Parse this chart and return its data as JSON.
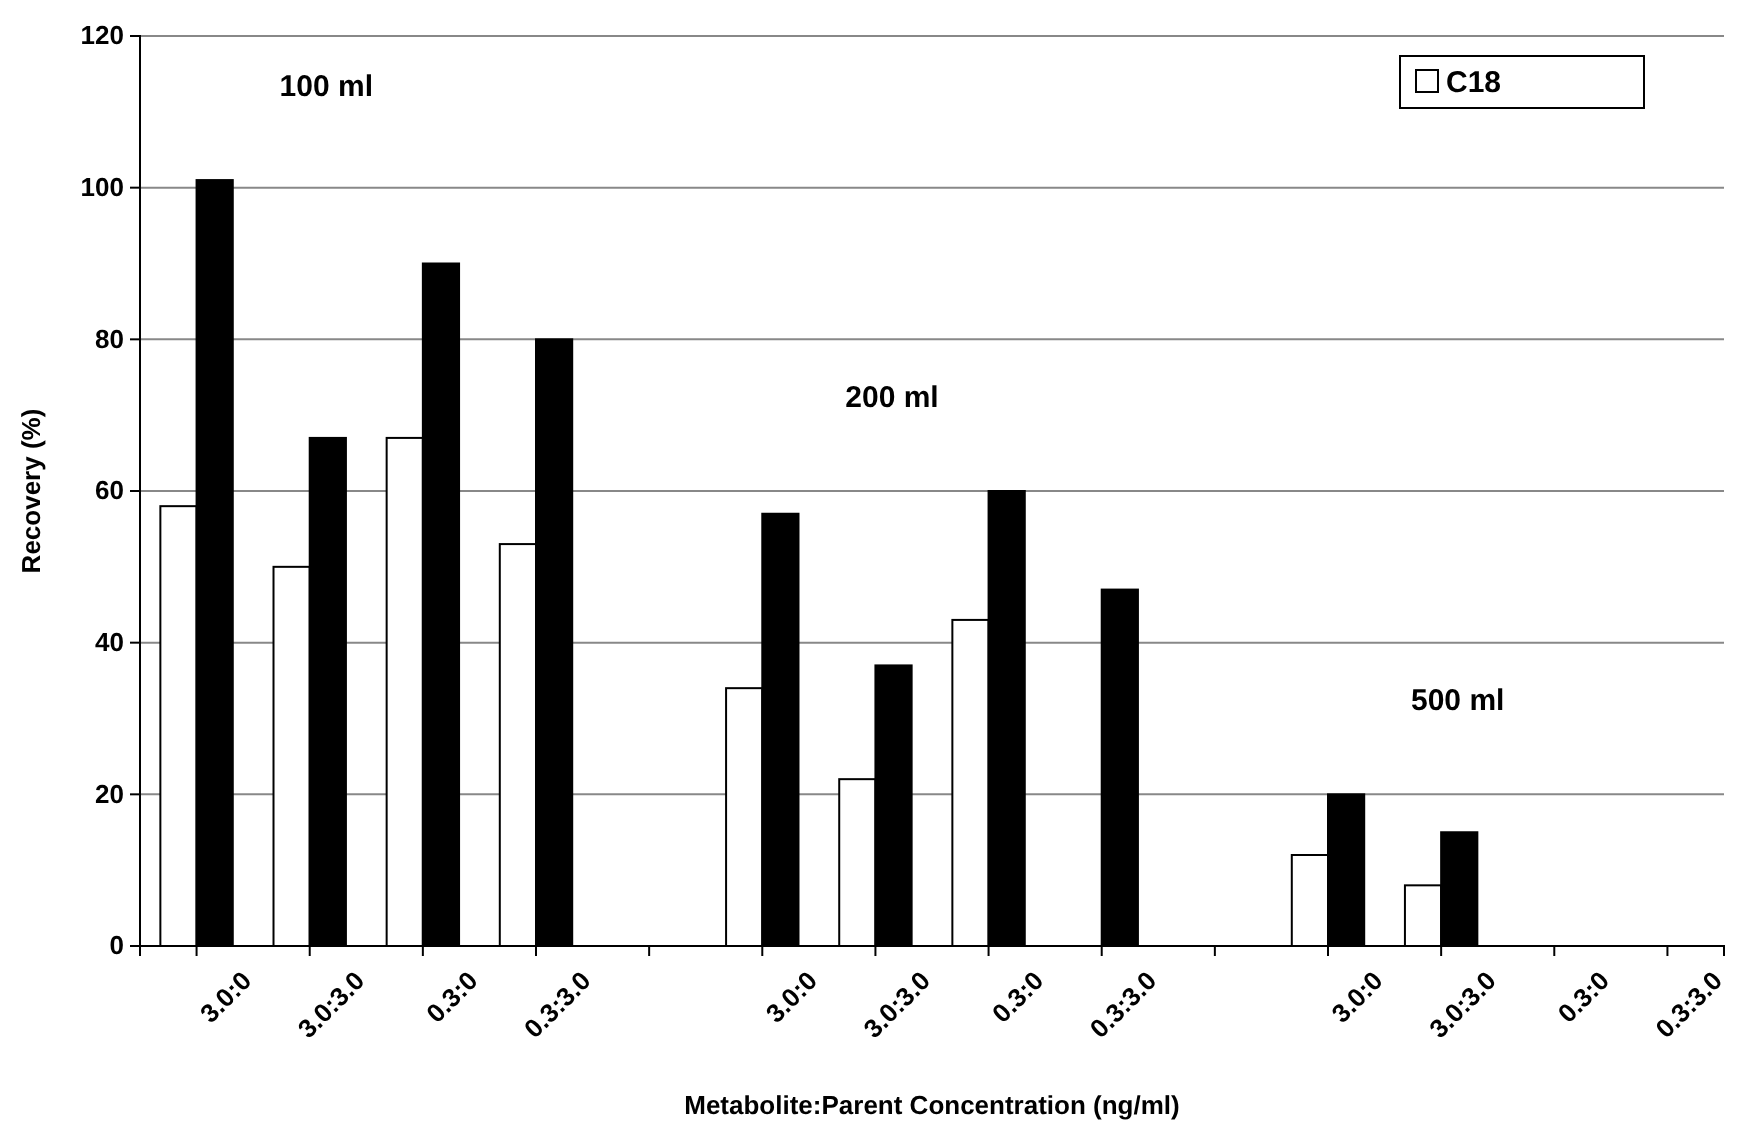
{
  "chart_data": {
    "type": "bar",
    "xlabel": "Metabolite:Parent Concentration (ng/ml)",
    "ylabel": "Recovery (%)",
    "categories": [
      "3.0:0",
      "3.0:3.0",
      "0.3:0",
      "0.3:3.0",
      null,
      "3.0:0",
      "3.0:3.0",
      "0.3:0",
      "0.3:3.0",
      null,
      "3.0:0",
      "3.0:3.0",
      "0.3:0",
      "0.3:3.0"
    ],
    "series": [
      {
        "name": "C18",
        "color": "#ffffff",
        "values": [
          58,
          50,
          67,
          53,
          null,
          34,
          22,
          43,
          null,
          null,
          12,
          8,
          null,
          null
        ]
      },
      {
        "color": "#000000",
        "values": [
          101,
          67,
          90,
          80,
          null,
          57,
          37,
          60,
          47,
          null,
          20,
          15,
          null,
          null
        ]
      }
    ],
    "ylim": [
      0,
      120
    ],
    "yticks": [
      0,
      20,
      40,
      60,
      80,
      100,
      120
    ],
    "grid": "y",
    "legend": "top right",
    "annotations": [
      "100 ml",
      "200 ml",
      "500 ml"
    ]
  }
}
